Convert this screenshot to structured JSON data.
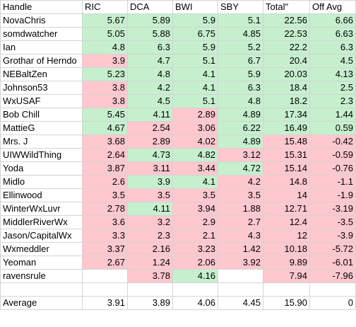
{
  "headers": [
    "Handle",
    "RIC",
    "DCA",
    "BWI",
    "SBY",
    "Total\"",
    "Off Avg"
  ],
  "rows": [
    {
      "handle": "NovaChris",
      "cells": [
        {
          "v": "5.67",
          "c": "g"
        },
        {
          "v": "5.89",
          "c": "g"
        },
        {
          "v": "5.9",
          "c": "g"
        },
        {
          "v": "5.1",
          "c": "g"
        },
        {
          "v": "22.56",
          "c": "g"
        },
        {
          "v": "6.66",
          "c": "g"
        }
      ]
    },
    {
      "handle": "somdwatcher",
      "cells": [
        {
          "v": "5.05",
          "c": "g"
        },
        {
          "v": "5.88",
          "c": "g"
        },
        {
          "v": "6.75",
          "c": "g"
        },
        {
          "v": "4.85",
          "c": "g"
        },
        {
          "v": "22.53",
          "c": "g"
        },
        {
          "v": "6.63",
          "c": "g"
        }
      ]
    },
    {
      "handle": "Ian",
      "cells": [
        {
          "v": "4.8",
          "c": "g"
        },
        {
          "v": "6.3",
          "c": "g"
        },
        {
          "v": "5.9",
          "c": "g"
        },
        {
          "v": "5.2",
          "c": "g"
        },
        {
          "v": "22.2",
          "c": "g"
        },
        {
          "v": "6.3",
          "c": "g"
        }
      ]
    },
    {
      "handle": "Grothar of Herndo",
      "cells": [
        {
          "v": "3.9",
          "c": "r"
        },
        {
          "v": "4.7",
          "c": "g"
        },
        {
          "v": "5.1",
          "c": "g"
        },
        {
          "v": "6.7",
          "c": "g"
        },
        {
          "v": "20.4",
          "c": "g"
        },
        {
          "v": "4.5",
          "c": "g"
        }
      ]
    },
    {
      "handle": "NEBaltZen",
      "cells": [
        {
          "v": "5.23",
          "c": "g"
        },
        {
          "v": "4.8",
          "c": "g"
        },
        {
          "v": "4.1",
          "c": "g"
        },
        {
          "v": "5.9",
          "c": "g"
        },
        {
          "v": "20.03",
          "c": "g"
        },
        {
          "v": "4.13",
          "c": "g"
        }
      ]
    },
    {
      "handle": "Johnson53",
      "cells": [
        {
          "v": "3.8",
          "c": "r"
        },
        {
          "v": "4.2",
          "c": "g"
        },
        {
          "v": "4.1",
          "c": "g"
        },
        {
          "v": "6.3",
          "c": "g"
        },
        {
          "v": "18.4",
          "c": "g"
        },
        {
          "v": "2.5",
          "c": "g"
        }
      ]
    },
    {
      "handle": "WxUSAF",
      "cells": [
        {
          "v": "3.8",
          "c": "r"
        },
        {
          "v": "4.5",
          "c": "g"
        },
        {
          "v": "5.1",
          "c": "g"
        },
        {
          "v": "4.8",
          "c": "g"
        },
        {
          "v": "18.2",
          "c": "g"
        },
        {
          "v": "2.3",
          "c": "g"
        }
      ]
    },
    {
      "handle": "Bob Chill",
      "cells": [
        {
          "v": "5.45",
          "c": "g"
        },
        {
          "v": "4.11",
          "c": "g"
        },
        {
          "v": "2.89",
          "c": "r"
        },
        {
          "v": "4.89",
          "c": "g"
        },
        {
          "v": "17.34",
          "c": "g"
        },
        {
          "v": "1.44",
          "c": "g"
        }
      ]
    },
    {
      "handle": "MattieG",
      "cells": [
        {
          "v": "4.67",
          "c": "g"
        },
        {
          "v": "2.54",
          "c": "r"
        },
        {
          "v": "3.06",
          "c": "r"
        },
        {
          "v": "6.22",
          "c": "g"
        },
        {
          "v": "16.49",
          "c": "g"
        },
        {
          "v": "0.59",
          "c": "g"
        }
      ]
    },
    {
      "handle": "Mrs. J",
      "cells": [
        {
          "v": "3.68",
          "c": "r"
        },
        {
          "v": "2.89",
          "c": "r"
        },
        {
          "v": "4.02",
          "c": "r"
        },
        {
          "v": "4.89",
          "c": "g"
        },
        {
          "v": "15.48",
          "c": "r"
        },
        {
          "v": "-0.42",
          "c": "r"
        }
      ]
    },
    {
      "handle": "UIWWildThing",
      "cells": [
        {
          "v": "2.64",
          "c": "r"
        },
        {
          "v": "4.73",
          "c": "g"
        },
        {
          "v": "4.82",
          "c": "g"
        },
        {
          "v": "3.12",
          "c": "r"
        },
        {
          "v": "15.31",
          "c": "r"
        },
        {
          "v": "-0.59",
          "c": "r"
        }
      ]
    },
    {
      "handle": "Yoda",
      "cells": [
        {
          "v": "3.87",
          "c": "r"
        },
        {
          "v": "3.11",
          "c": "r"
        },
        {
          "v": "3.44",
          "c": "r"
        },
        {
          "v": "4.72",
          "c": "g"
        },
        {
          "v": "15.14",
          "c": "r"
        },
        {
          "v": "-0.76",
          "c": "r"
        }
      ]
    },
    {
      "handle": "Midlo",
      "cells": [
        {
          "v": "2.6",
          "c": "r"
        },
        {
          "v": "3.9",
          "c": "g"
        },
        {
          "v": "4.1",
          "c": "g"
        },
        {
          "v": "4.2",
          "c": "r"
        },
        {
          "v": "14.8",
          "c": "r"
        },
        {
          "v": "-1.1",
          "c": "r"
        }
      ]
    },
    {
      "handle": "Ellinwood",
      "cells": [
        {
          "v": "3.5",
          "c": "r"
        },
        {
          "v": "3.5",
          "c": "r"
        },
        {
          "v": "3.5",
          "c": "r"
        },
        {
          "v": "3.5",
          "c": "r"
        },
        {
          "v": "14",
          "c": "r"
        },
        {
          "v": "-1.9",
          "c": "r"
        }
      ]
    },
    {
      "handle": "WinterWxLuvr",
      "cells": [
        {
          "v": "2.78",
          "c": "r"
        },
        {
          "v": "4.11",
          "c": "g"
        },
        {
          "v": "3.94",
          "c": "r"
        },
        {
          "v": "1.88",
          "c": "r"
        },
        {
          "v": "12.71",
          "c": "r"
        },
        {
          "v": "-3.19",
          "c": "r"
        }
      ]
    },
    {
      "handle": "MiddlerRiverWx",
      "cells": [
        {
          "v": "3.6",
          "c": "r"
        },
        {
          "v": "3.2",
          "c": "r"
        },
        {
          "v": "2.9",
          "c": "r"
        },
        {
          "v": "2.7",
          "c": "r"
        },
        {
          "v": "12.4",
          "c": "r"
        },
        {
          "v": "-3.5",
          "c": "r"
        }
      ]
    },
    {
      "handle": "Jason/CapitalWx",
      "cells": [
        {
          "v": "3.3",
          "c": "r"
        },
        {
          "v": "2.3",
          "c": "r"
        },
        {
          "v": "2.1",
          "c": "r"
        },
        {
          "v": "4.3",
          "c": "r"
        },
        {
          "v": "12",
          "c": "r"
        },
        {
          "v": "-3.9",
          "c": "r"
        }
      ]
    },
    {
      "handle": "Wxmeddler",
      "cells": [
        {
          "v": "3.37",
          "c": "r"
        },
        {
          "v": "2.16",
          "c": "r"
        },
        {
          "v": "3.23",
          "c": "r"
        },
        {
          "v": "1.42",
          "c": "r"
        },
        {
          "v": "10.18",
          "c": "r"
        },
        {
          "v": "-5.72",
          "c": "r"
        }
      ]
    },
    {
      "handle": "Yeoman",
      "cells": [
        {
          "v": "2.67",
          "c": "r"
        },
        {
          "v": "1.24",
          "c": "r"
        },
        {
          "v": "2.06",
          "c": "r"
        },
        {
          "v": "3.92",
          "c": "r"
        },
        {
          "v": "9.89",
          "c": "r"
        },
        {
          "v": "-6.01",
          "c": "r"
        }
      ]
    },
    {
      "handle": "ravensrule",
      "cells": [
        {
          "v": "",
          "c": "w"
        },
        {
          "v": "3.78",
          "c": "r"
        },
        {
          "v": "4.16",
          "c": "g"
        },
        {
          "v": "",
          "c": "w"
        },
        {
          "v": "7.94",
          "c": "r"
        },
        {
          "v": "-7.96",
          "c": "r"
        }
      ]
    }
  ],
  "average": {
    "label": "Average",
    "values": [
      "3.91",
      "3.89",
      "4.06",
      "4.45",
      "15.90",
      "0"
    ]
  },
  "colors": {
    "above_average": "#c6efce",
    "below_average": "#ffc7ce",
    "gridline": "#d4d4d4"
  }
}
